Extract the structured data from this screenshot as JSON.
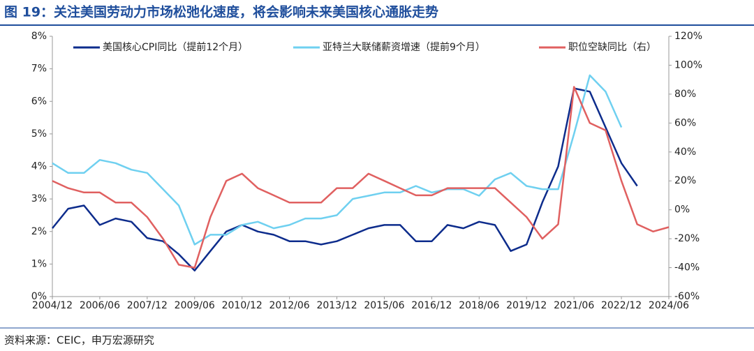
{
  "chart_data": {
    "type": "line",
    "title": "图 19：关注美国劳动力市场松弛化速度，将会影响未来美国核心通胀走势",
    "source": "资料来源：CEIC，申万宏源研究",
    "x": [
      "2004/12",
      "2005/06",
      "2005/12",
      "2006/06",
      "2006/12",
      "2007/06",
      "2007/12",
      "2008/06",
      "2008/12",
      "2009/06",
      "2009/12",
      "2010/06",
      "2010/12",
      "2011/06",
      "2011/12",
      "2012/06",
      "2012/12",
      "2013/06",
      "2013/12",
      "2014/06",
      "2014/12",
      "2015/06",
      "2015/12",
      "2016/06",
      "2016/12",
      "2017/06",
      "2017/12",
      "2018/06",
      "2018/12",
      "2019/06",
      "2019/12",
      "2020/06",
      "2020/12",
      "2021/06",
      "2021/12",
      "2022/06",
      "2022/12",
      "2023/06",
      "2023/12",
      "2024/06"
    ],
    "xticks": [
      "2004/12",
      "2006/06",
      "2007/12",
      "2009/06",
      "2010/12",
      "2012/06",
      "2013/12",
      "2015/06",
      "2016/12",
      "2018/06",
      "2019/12",
      "2021/06",
      "2022/12",
      "2024/06"
    ],
    "series": [
      {
        "name": "美国核心CPI同比（提前12个月）",
        "color": "#0d2c8c",
        "axis": "y",
        "values": [
          2.1,
          2.7,
          2.8,
          2.2,
          2.4,
          2.3,
          1.8,
          1.7,
          1.3,
          0.8,
          1.4,
          2.0,
          2.2,
          2.0,
          1.9,
          1.7,
          1.7,
          1.6,
          1.7,
          1.9,
          2.1,
          2.2,
          2.2,
          1.7,
          1.7,
          2.2,
          2.1,
          2.3,
          2.2,
          1.4,
          1.6,
          2.9,
          4.0,
          6.4,
          6.3,
          5.2,
          4.1,
          3.4,
          null,
          null
        ]
      },
      {
        "name": "亚特兰大联储薪资增速（提前9个月）",
        "color": "#6fd0f0",
        "axis": "y",
        "values": [
          4.1,
          3.8,
          3.8,
          4.2,
          4.1,
          3.9,
          3.8,
          3.3,
          2.8,
          1.6,
          1.9,
          1.9,
          2.2,
          2.3,
          2.1,
          2.2,
          2.4,
          2.4,
          2.5,
          3.0,
          3.1,
          3.2,
          3.2,
          3.4,
          3.2,
          3.3,
          3.3,
          3.1,
          3.6,
          3.8,
          3.4,
          3.3,
          3.3,
          5.0,
          6.8,
          6.3,
          5.2,
          null,
          null,
          null
        ]
      },
      {
        "name": "职位空缺同比（右）",
        "color": "#e06060",
        "axis": "y2",
        "values": [
          20,
          15,
          12,
          12,
          5,
          5,
          -5,
          -20,
          -38,
          -40,
          -5,
          20,
          25,
          15,
          10,
          5,
          5,
          5,
          15,
          15,
          25,
          20,
          15,
          10,
          10,
          15,
          15,
          15,
          15,
          5,
          -5,
          -20,
          -10,
          85,
          60,
          55,
          20,
          -10,
          -15,
          -12
        ]
      }
    ],
    "ylim": [
      0,
      8
    ],
    "yticks": [
      {
        "value": 0,
        "label": "0%"
      },
      {
        "value": 1,
        "label": "1%"
      },
      {
        "value": 2,
        "label": "2%"
      },
      {
        "value": 3,
        "label": "3%"
      },
      {
        "value": 4,
        "label": "4%"
      },
      {
        "value": 5,
        "label": "5%"
      },
      {
        "value": 6,
        "label": "6%"
      },
      {
        "value": 7,
        "label": "7%"
      },
      {
        "value": 8,
        "label": "8%"
      }
    ],
    "y2lim": [
      -60,
      120
    ],
    "y2ticks": [
      {
        "value": -60,
        "label": "-60%"
      },
      {
        "value": -40,
        "label": "-40%"
      },
      {
        "value": -20,
        "label": "-20%"
      },
      {
        "value": 0,
        "label": "0%"
      },
      {
        "value": 20,
        "label": "20%"
      },
      {
        "value": 40,
        "label": "40%"
      },
      {
        "value": 60,
        "label": "60%"
      },
      {
        "value": 80,
        "label": "80%"
      },
      {
        "value": 100,
        "label": "100%"
      },
      {
        "value": 120,
        "label": "120%"
      }
    ]
  }
}
